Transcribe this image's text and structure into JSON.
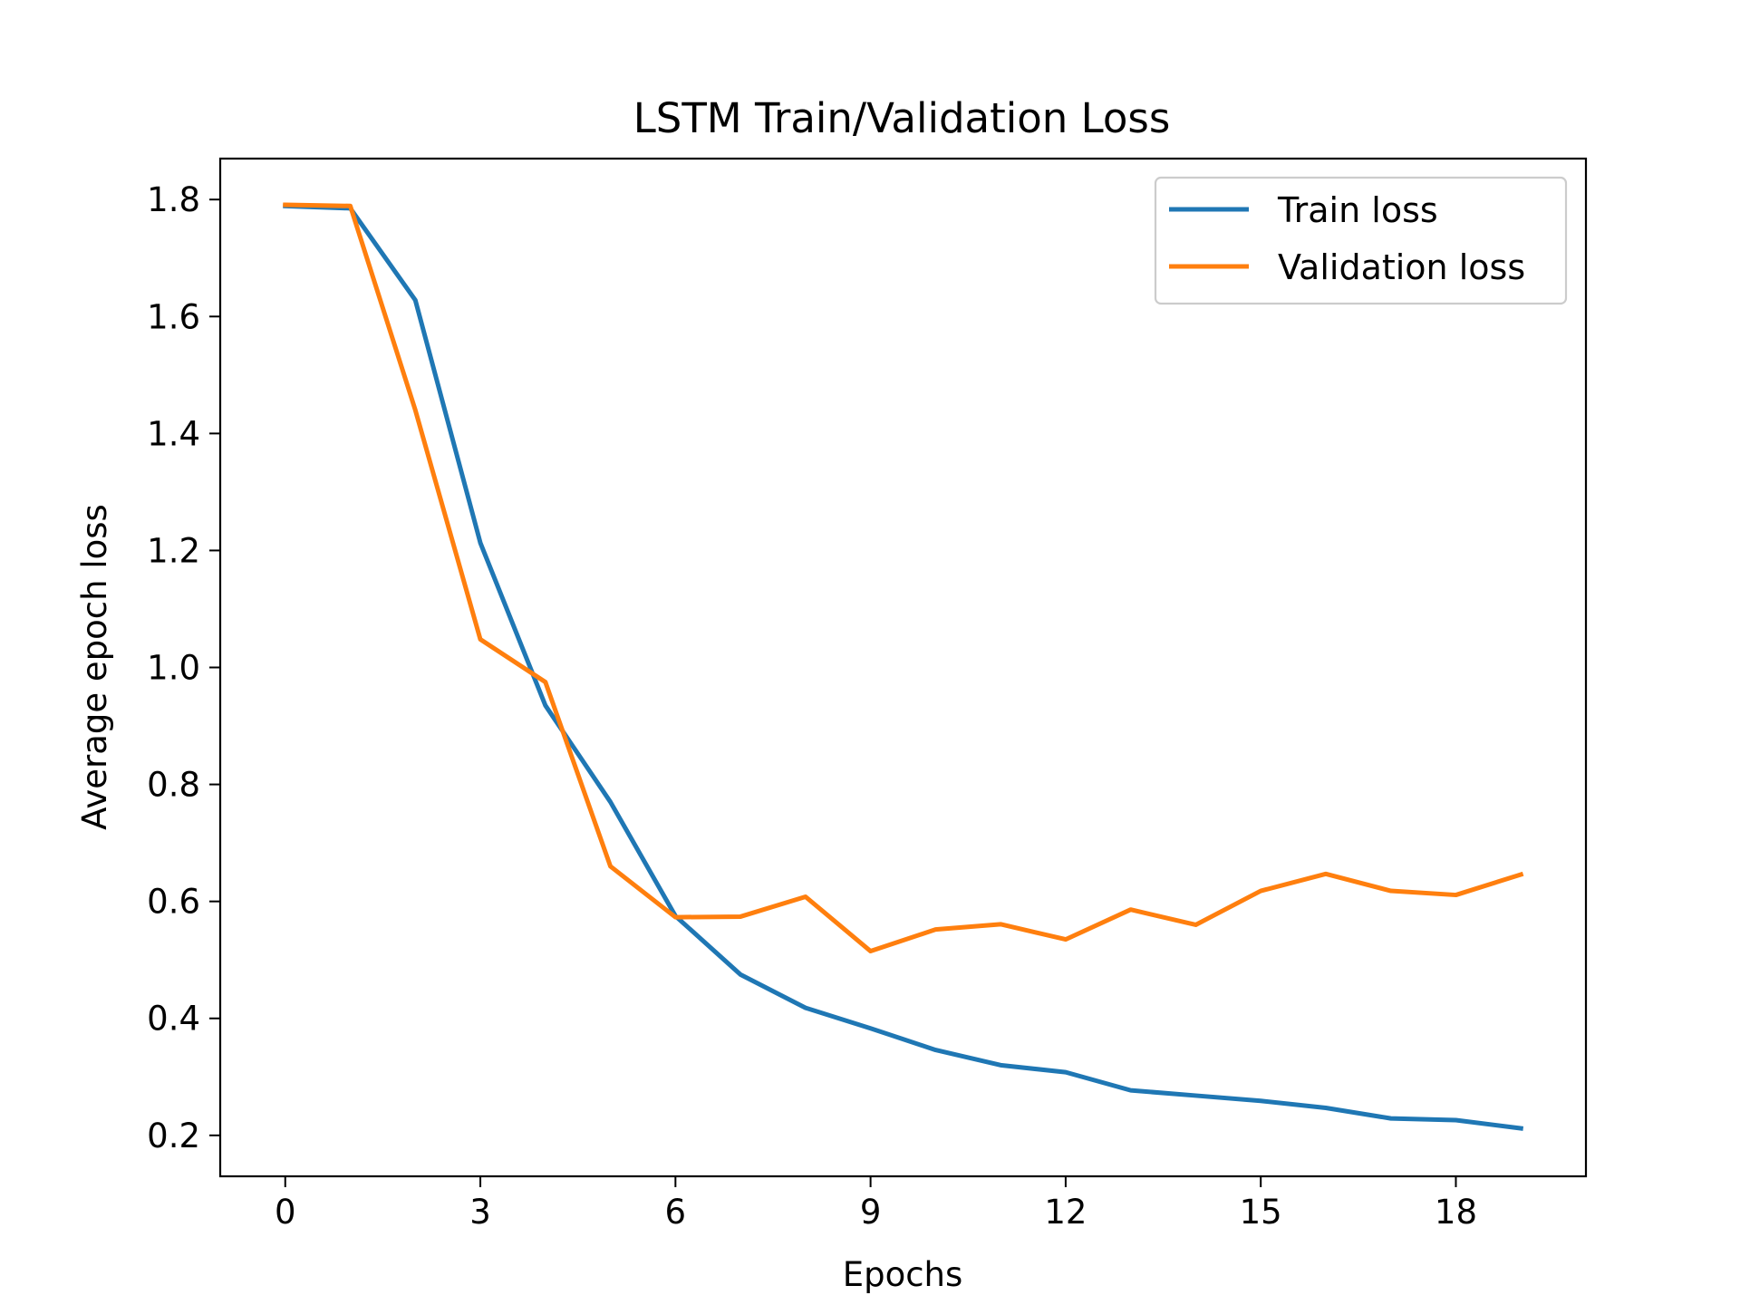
{
  "chart_data": {
    "type": "line",
    "title": "LSTM Train/Validation Loss",
    "xlabel": "Epochs",
    "ylabel": "Average epoch loss",
    "xlim": [
      -1,
      20
    ],
    "ylim": [
      0.13,
      1.87
    ],
    "xticks": [
      0,
      3,
      6,
      9,
      12,
      15,
      18
    ],
    "xtick_labels": [
      "0",
      "3",
      "6",
      "9",
      "12",
      "15",
      "18"
    ],
    "yticks": [
      0.2,
      0.4,
      0.6,
      0.8,
      1.0,
      1.2,
      1.4,
      1.6,
      1.8
    ],
    "ytick_labels": [
      "0.2",
      "0.4",
      "0.6",
      "0.8",
      "1.0",
      "1.2",
      "1.4",
      "1.6",
      "1.8"
    ],
    "grid": false,
    "legend_position": "top-right",
    "x": [
      0,
      1,
      2,
      3,
      4,
      5,
      6,
      7,
      8,
      9,
      10,
      11,
      12,
      13,
      14,
      15,
      16,
      17,
      18,
      19
    ],
    "series": [
      {
        "name": "Train loss",
        "color": "#1f77b4",
        "values": [
          1.789,
          1.785,
          1.628,
          1.213,
          0.935,
          0.77,
          0.575,
          0.475,
          0.418,
          0.383,
          0.346,
          0.32,
          0.308,
          0.277,
          0.268,
          0.259,
          0.247,
          0.229,
          0.226,
          0.212
        ]
      },
      {
        "name": "Validation loss",
        "color": "#ff7f0e",
        "values": [
          1.791,
          1.789,
          1.44,
          1.048,
          0.975,
          0.66,
          0.573,
          0.574,
          0.608,
          0.515,
          0.552,
          0.561,
          0.535,
          0.586,
          0.56,
          0.618,
          0.647,
          0.618,
          0.611,
          0.646
        ]
      }
    ]
  }
}
